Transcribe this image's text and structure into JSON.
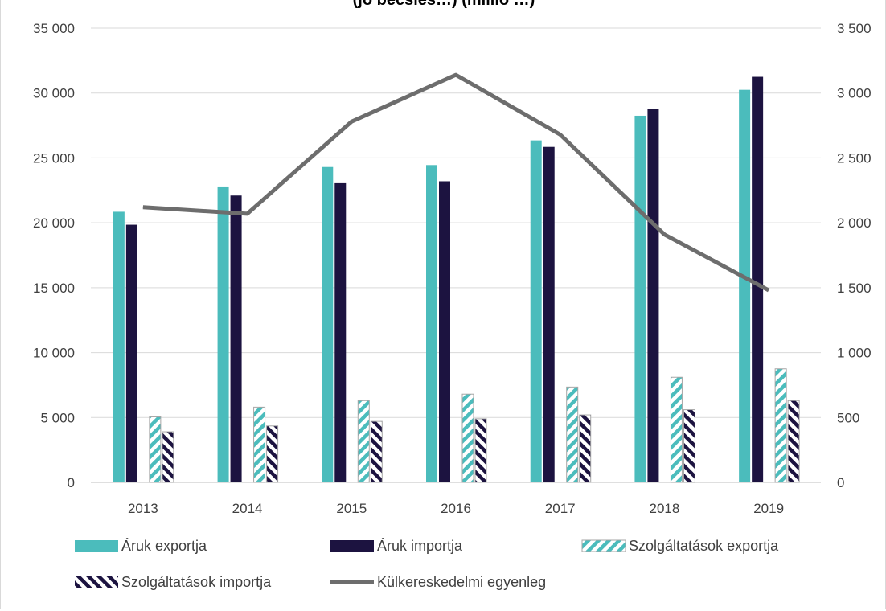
{
  "chart_data": {
    "type": "bar",
    "title": "(jó becslés…) (millió …)",
    "categories": [
      "2013",
      "2014",
      "2015",
      "2016",
      "2017",
      "2018",
      "2019"
    ],
    "y_left": {
      "min": 0,
      "max": 35000,
      "step": 5000,
      "tick_labels": [
        "0",
        "5 000",
        "10 000",
        "15 000",
        "20 000",
        "25 000",
        "30 000",
        "35 000"
      ]
    },
    "y_right": {
      "min": 0,
      "max": 3500,
      "step": 500,
      "tick_labels": [
        "0",
        "500",
        "1 000",
        "1 500",
        "2 000",
        "2 500",
        "3 000",
        "3 500"
      ]
    },
    "grid": true,
    "legend_position": "bottom",
    "series": [
      {
        "name": "Áruk exportja",
        "kind": "bar",
        "axis": "left",
        "pattern": "solid",
        "color": "#4bbcbc",
        "values": [
          20850,
          22800,
          24300,
          24450,
          26350,
          28250,
          30250
        ]
      },
      {
        "name": "Áruk importja",
        "kind": "bar",
        "axis": "left",
        "pattern": "solid",
        "color": "#1c1340",
        "values": [
          19850,
          22100,
          23050,
          23200,
          25850,
          28800,
          31250
        ]
      },
      {
        "name": "Szolgáltatások exportja",
        "kind": "bar",
        "axis": "left",
        "pattern": "hatch",
        "color": "#4bbcbc",
        "values": [
          5050,
          5800,
          6300,
          6800,
          7350,
          8100,
          8750
        ]
      },
      {
        "name": "Szolgáltatások importja",
        "kind": "bar",
        "axis": "left",
        "pattern": "hatch",
        "color": "#1c1340",
        "values": [
          3900,
          4350,
          4700,
          4900,
          5200,
          5600,
          6300
        ]
      },
      {
        "name": "Külkereskedelmi egyenleg",
        "kind": "line",
        "axis": "right",
        "color": "#6d6d6d",
        "values": [
          2120,
          2070,
          2780,
          3140,
          2680,
          1910,
          1480
        ]
      }
    ]
  }
}
